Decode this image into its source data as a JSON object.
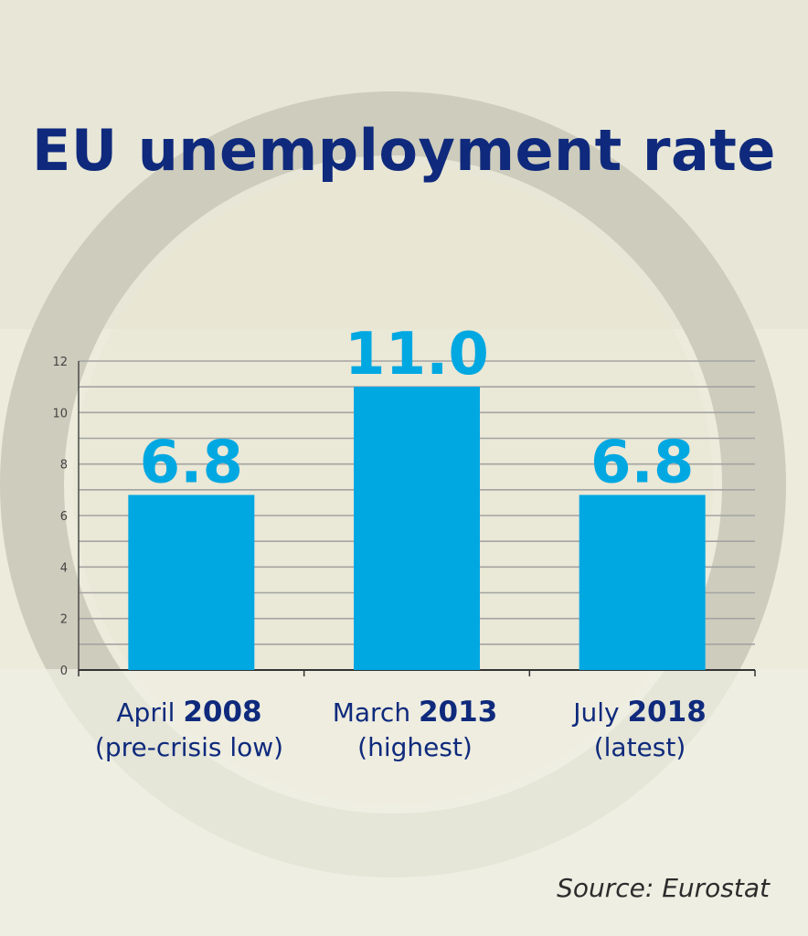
{
  "title": "EU unemployment rate",
  "source": "Source: Eurostat",
  "colors": {
    "bar": "#00a8e2",
    "title": "#0f2a7c",
    "grid": "#a3a3a3"
  },
  "chart_data": {
    "type": "bar",
    "categories": [
      "April 2008 (pre-crisis low)",
      "March 2013 (highest)",
      "July 2018 (latest)"
    ],
    "category_labels": [
      {
        "month": "April",
        "year": "2008",
        "note": "(pre-crisis low)"
      },
      {
        "month": "March",
        "year": "2013",
        "note": "(highest)"
      },
      {
        "month": "July",
        "year": "2018",
        "note": "(latest)"
      }
    ],
    "values": [
      6.8,
      11.0,
      6.8
    ],
    "data_labels": [
      "6.8",
      "11.0",
      "6.8"
    ],
    "yticks": [
      "0",
      "2",
      "4",
      "6",
      "8",
      "10",
      "12"
    ],
    "ylim": [
      0,
      12
    ],
    "grid": true,
    "title": "EU unemployment rate"
  }
}
